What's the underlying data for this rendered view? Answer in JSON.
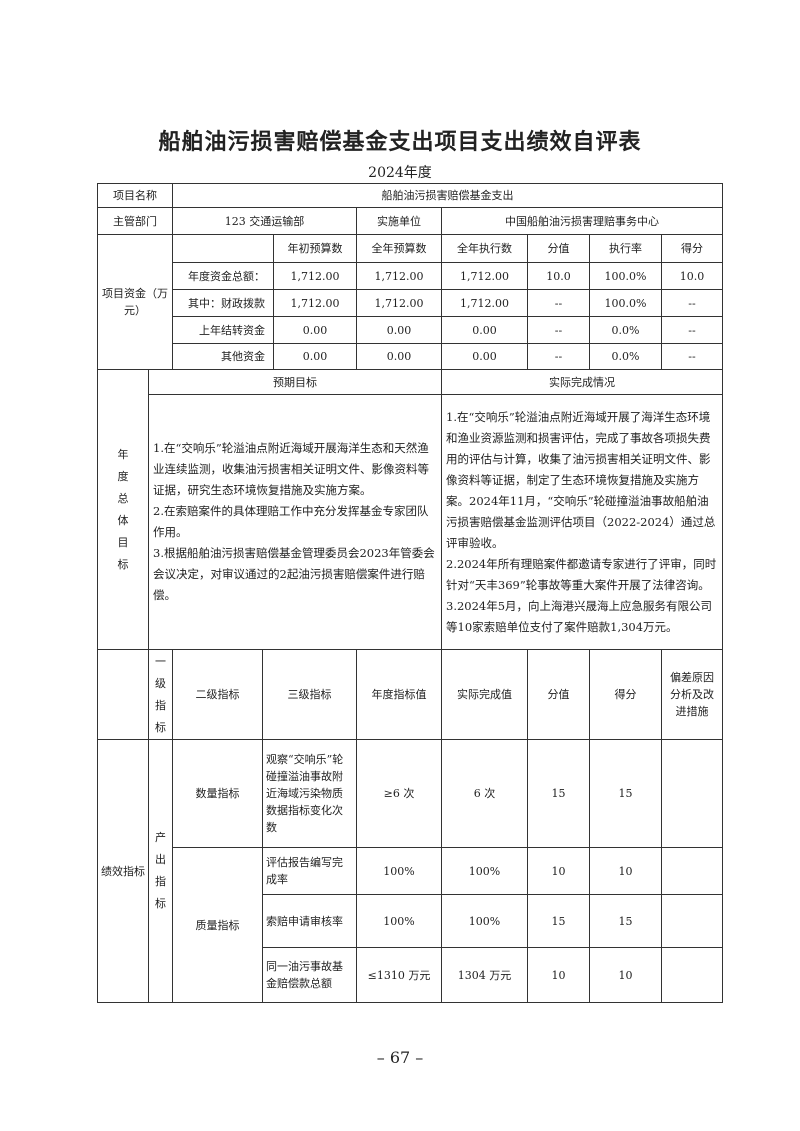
{
  "title": "船舶油污损害赔偿基金支出项目支出绩效自评表",
  "year": "2024年度",
  "project": {
    "name_label": "项目名称",
    "name": "船舶油污损害赔偿基金支出",
    "dept_label": "主管部门",
    "dept": "123 交通运输部",
    "impl_label": "实施单位",
    "impl": "中国船舶油污损害理赔事务中心"
  },
  "funds": {
    "label": "项目资金（万元）",
    "headers": [
      "年初预算数",
      "全年预算数",
      "全年执行数",
      "分值",
      "执行率",
      "得分"
    ],
    "rows": [
      {
        "label": "年度资金总额：",
        "values": [
          "1,712.00",
          "1,712.00",
          "1,712.00",
          "10.0",
          "100.0%",
          "10.0"
        ]
      },
      {
        "label": "其中：财政拨款",
        "values": [
          "1,712.00",
          "1,712.00",
          "1,712.00",
          "--",
          "100.0%",
          "--"
        ]
      },
      {
        "label": "上年结转资金",
        "values": [
          "0.00",
          "0.00",
          "0.00",
          "--",
          "0.0%",
          "--"
        ]
      },
      {
        "label": "其他资金",
        "values": [
          "0.00",
          "0.00",
          "0.00",
          "--",
          "0.0%",
          "--"
        ]
      }
    ]
  },
  "goals": {
    "label": "年度总体目标",
    "expected_label": "预期目标",
    "actual_label": "实际完成情况",
    "expected": [
      "1.在“交响乐”轮溢油点附近海域开展海洋生态和天然渔业连续监测，收集油污损害相关证明文件、影像资料等证据，研究生态环境恢复措施及实施方案。",
      "2.在索赔案件的具体理赔工作中充分发挥基金专家团队作用。",
      "3.根据船舶油污损害赔偿基金管理委员会2023年管委会会议决定，对审议通过的2起油污损害赔偿案件进行赔偿。"
    ],
    "actual": [
      "1.在“交响乐”轮溢油点附近海域开展了海洋生态环境和渔业资源监测和损害评估，完成了事故各项损失费用的评估与计算，收集了油污损害相关证明文件、影像资料等证据，制定了生态环境恢复措施及实施方案。2024年11月，“交响乐”轮碰撞溢油事故船舶油污损害赔偿基金监测评估项目（2022-2024）通过总评审验收。",
      "2.2024年所有理赔案件都邀请专家进行了评审，同时针对“天丰369”轮事故等重大案件开展了法律咨询。",
      "3.2024年5月，向上海港兴晟海上应急服务有限公司等10家索赔单位支付了案件赔款1,304万元。"
    ]
  },
  "perf": {
    "label": "绩效指标",
    "headers": [
      "一级指标",
      "二级指标",
      "三级指标",
      "年度指标值",
      "实际完成值",
      "分值",
      "得分",
      "偏差原因分析及改进措施"
    ],
    "level1": "产出指标",
    "quantity_label": "数量指标",
    "quality_label": "质量指标",
    "rows": [
      {
        "l3": "观察“交响乐”轮碰撞溢油事故附近海域污染物质数据指标变化次数",
        "target": "≥6 次",
        "actual": "6 次",
        "score_value": "15",
        "score": "15",
        "reason": ""
      },
      {
        "l3": "评估报告编写完成率",
        "target": "100%",
        "actual": "100%",
        "score_value": "10",
        "score": "10",
        "reason": ""
      },
      {
        "l3": "索赔申请审核率",
        "target": "100%",
        "actual": "100%",
        "score_value": "15",
        "score": "15",
        "reason": ""
      },
      {
        "l3": "同一油污事故基金赔偿款总额",
        "target": "≤1310 万元",
        "actual": "1304 万元",
        "score_value": "10",
        "score": "10",
        "reason": ""
      }
    ]
  },
  "page_number": "– 67 –"
}
